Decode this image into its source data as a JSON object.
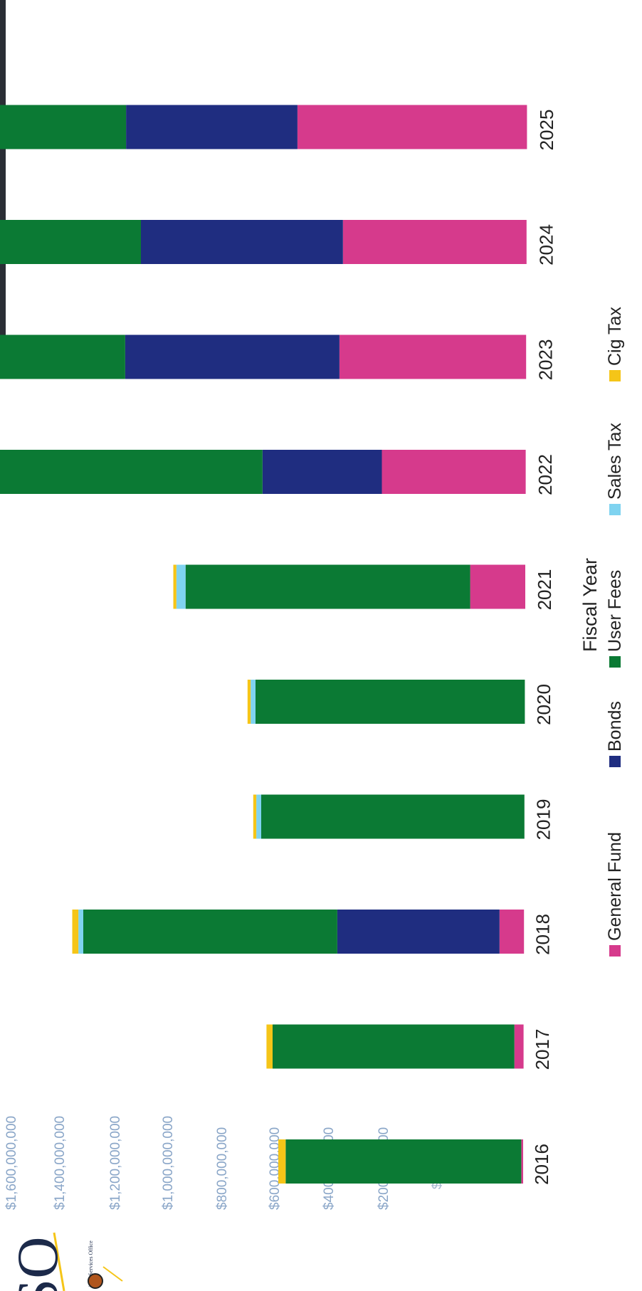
{
  "chart_data": {
    "type": "bar",
    "orientation": "horizontal-stacked",
    "xlabel": "Fiscal Year",
    "ylabel": "",
    "categories": [
      "2016",
      "2017",
      "2018",
      "2019",
      "2020",
      "2021",
      "2022",
      "2023",
      "2024",
      "2025"
    ],
    "value_ticks": [
      "$1,600,000,000",
      "$1,400,000,000",
      "$1,200,000,000",
      "$1,000,000,000",
      "$800,000,000",
      "$600,000,000",
      "$400,000,000",
      "$200,000,000",
      "$"
    ],
    "ylim": [
      0,
      1600000000
    ],
    "series": [
      {
        "name": "General Fund",
        "color": "#d63a8c",
        "values": [
          3000000,
          15000000,
          40000000,
          0,
          0,
          90000000,
          235000000,
          305000000,
          300000000,
          375000000
        ]
      },
      {
        "name": "Bonds",
        "color": "#1f2d80",
        "values": [
          0,
          0,
          265000000,
          0,
          0,
          0,
          195000000,
          350000000,
          330000000,
          280000000
        ]
      },
      {
        "name": "User Fees",
        "color": "#0b7a34",
        "values": [
          385000000,
          395000000,
          415000000,
          430000000,
          440000000,
          465000000,
          470000000,
          470000000,
          490000000,
          500000000
        ]
      },
      {
        "name": "Sales Tax",
        "color": "#7fd3f0",
        "values": [
          0,
          0,
          8000000,
          8000000,
          8000000,
          15000000,
          90000000,
          100000000,
          100000000,
          100000000
        ]
      },
      {
        "name": "Cig Tax",
        "color": "#f5c518",
        "values": [
          12000000,
          10000000,
          10000000,
          5000000,
          5000000,
          5000000,
          5000000,
          5000000,
          5000000,
          5000000
        ]
      }
    ],
    "legend_placement": "bottom",
    "grid": false
  },
  "logo": {
    "text": "SO",
    "subtitle": "itive Services Office"
  }
}
